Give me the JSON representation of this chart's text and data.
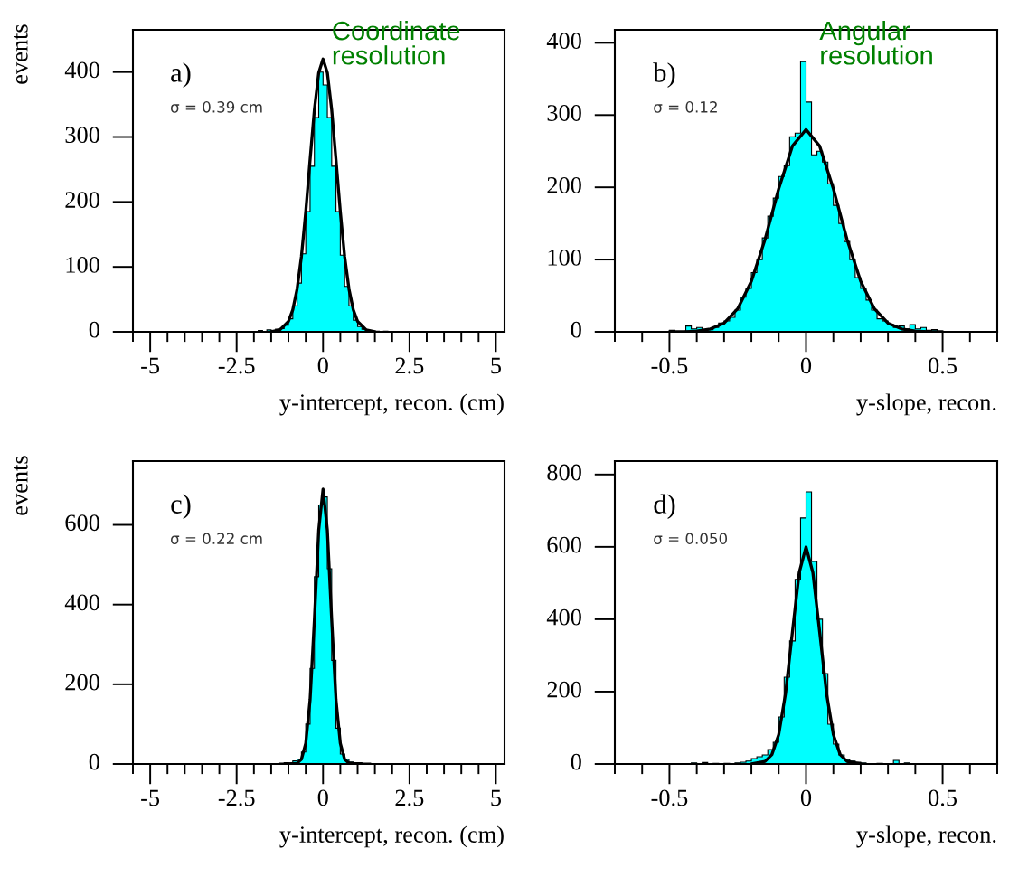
{
  "chart_data": [
    {
      "type": "histogram",
      "xlabel": "y-intercept, recon. (cm)",
      "ylabel": "events",
      "annotations": [
        "a)",
        "σ = 0.39 cm",
        "Coordinate\nresolution"
      ],
      "xlim": [
        -5.5,
        5.25
      ],
      "xticks": [
        -5,
        -2.5,
        0,
        2.5,
        5
      ],
      "ylim": [
        0,
        465
      ],
      "yticks": [
        0,
        100,
        200,
        300,
        400
      ],
      "series": [
        {
          "type": "histogram",
          "color": "#00ffff",
          "bins": [
            -2,
            -1.875,
            -1.75,
            -1.625,
            -1.5,
            -1.375,
            -1.25,
            -1.125,
            -1,
            -0.875,
            -0.75,
            -0.625,
            -0.5,
            -0.375,
            -0.25,
            -0.125,
            0,
            0.125,
            0.25,
            0.375,
            0.5,
            0.625,
            0.75,
            0.875,
            1,
            1.125,
            1.25,
            1.375,
            1.5,
            1.625,
            1.75,
            1.875,
            2
          ],
          "values": [
            0,
            2,
            0,
            3,
            2,
            4,
            5,
            10,
            20,
            40,
            75,
            120,
            185,
            255,
            330,
            400,
            380,
            330,
            255,
            185,
            118,
            70,
            40,
            18,
            8,
            4,
            2,
            1,
            1,
            0,
            1,
            0
          ]
        },
        {
          "type": "line",
          "color": "#000000",
          "x": [
            -1.5,
            -1.25,
            -1,
            -0.875,
            -0.75,
            -0.625,
            -0.5,
            -0.375,
            -0.25,
            -0.125,
            0,
            0.125,
            0.25,
            0.375,
            0.5,
            0.625,
            0.75,
            0.875,
            1,
            1.25,
            1.5
          ],
          "values": [
            0,
            3,
            16,
            34,
            66,
            116,
            185,
            265,
            342,
            399,
            420,
            399,
            342,
            265,
            185,
            116,
            66,
            34,
            16,
            3,
            0
          ]
        }
      ]
    },
    {
      "type": "histogram",
      "xlabel": "y-slope, recon.",
      "annotations": [
        "b)",
        "σ = 0.12",
        "Angular\nresolution"
      ],
      "xlim": [
        -0.7,
        0.7
      ],
      "xticks": [
        -0.5,
        0,
        0.5
      ],
      "ylim": [
        0,
        418
      ],
      "yticks": [
        0,
        100,
        200,
        300,
        400
      ],
      "series": [
        {
          "type": "histogram",
          "color": "#00ffff",
          "bins": [
            -0.5,
            -0.48,
            -0.46,
            -0.44,
            -0.42,
            -0.4,
            -0.38,
            -0.36,
            -0.34,
            -0.32,
            -0.3,
            -0.28,
            -0.26,
            -0.24,
            -0.22,
            -0.2,
            -0.18,
            -0.16,
            -0.14,
            -0.12,
            -0.1,
            -0.08,
            -0.06,
            -0.04,
            -0.02,
            0,
            0.02,
            0.04,
            0.06,
            0.08,
            0.1,
            0.12,
            0.14,
            0.16,
            0.18,
            0.2,
            0.22,
            0.24,
            0.26,
            0.28,
            0.3,
            0.32,
            0.34,
            0.36,
            0.38,
            0.4,
            0.42,
            0.44,
            0.46,
            0.48,
            0.5
          ],
          "values": [
            2,
            0,
            0,
            8,
            4,
            6,
            2,
            3,
            6,
            12,
            15,
            20,
            30,
            48,
            60,
            82,
            100,
            130,
            160,
            185,
            215,
            230,
            270,
            275,
            374,
            318,
            245,
            250,
            235,
            205,
            175,
            150,
            125,
            100,
            75,
            60,
            44,
            30,
            18,
            15,
            10,
            6,
            8,
            4,
            10,
            4,
            6,
            2,
            3,
            0
          ]
        },
        {
          "type": "line",
          "color": "#000000",
          "x": [
            -0.5,
            -0.45,
            -0.4,
            -0.35,
            -0.3,
            -0.25,
            -0.2,
            -0.15,
            -0.1,
            -0.05,
            0,
            0.05,
            0.1,
            0.15,
            0.2,
            0.25,
            0.3,
            0.35,
            0.4,
            0.45,
            0.5
          ],
          "values": [
            0,
            0,
            1,
            4,
            12,
            32,
            70,
            128,
            198,
            257,
            280,
            257,
            198,
            128,
            70,
            32,
            12,
            4,
            1,
            0,
            0
          ]
        }
      ]
    },
    {
      "type": "histogram",
      "xlabel": "y-intercept, recon. (cm)",
      "ylabel": "events",
      "annotations": [
        "c)",
        "σ = 0.22 cm"
      ],
      "xlim": [
        -5.5,
        5.25
      ],
      "xticks": [
        -5,
        -2.5,
        0,
        2.5,
        5
      ],
      "ylim": [
        0,
        760
      ],
      "yticks": [
        0,
        200,
        400,
        600
      ],
      "series": [
        {
          "type": "histogram",
          "color": "#00ffff",
          "bins": [
            -2,
            -1.875,
            -1.75,
            -1.625,
            -1.5,
            -1.375,
            -1.25,
            -1.125,
            -1,
            -0.875,
            -0.75,
            -0.625,
            -0.5,
            -0.375,
            -0.25,
            -0.125,
            0,
            0.125,
            0.25,
            0.375,
            0.5,
            0.625,
            0.75,
            0.875,
            1,
            1.125,
            1.25,
            1.375,
            1.5,
            1.625,
            1.75,
            1.875,
            2
          ],
          "values": [
            0,
            0,
            0,
            0,
            1,
            0,
            2,
            3,
            2,
            8,
            12,
            30,
            100,
            240,
            470,
            650,
            670,
            490,
            260,
            90,
            25,
            12,
            5,
            3,
            3,
            2,
            2,
            1,
            0,
            0,
            0,
            0
          ]
        },
        {
          "type": "line",
          "color": "#000000",
          "x": [
            -1,
            -0.75,
            -0.625,
            -0.5,
            -0.375,
            -0.25,
            -0.125,
            0,
            0.125,
            0.25,
            0.375,
            0.5,
            0.625,
            0.75,
            1
          ],
          "values": [
            0,
            2,
            12,
            52,
            161,
            362,
            587,
            690,
            587,
            362,
            161,
            52,
            12,
            2,
            0
          ]
        }
      ]
    },
    {
      "type": "histogram",
      "xlabel": "y-slope, recon.",
      "annotations": [
        "d)",
        "σ = 0.050"
      ],
      "xlim": [
        -0.7,
        0.7
      ],
      "xticks": [
        -0.5,
        0,
        0.5
      ],
      "ylim": [
        0,
        837
      ],
      "yticks": [
        0,
        200,
        400,
        600,
        800
      ],
      "series": [
        {
          "type": "histogram",
          "color": "#00ffff",
          "bins": [
            -0.5,
            -0.48,
            -0.46,
            -0.44,
            -0.42,
            -0.4,
            -0.38,
            -0.36,
            -0.34,
            -0.32,
            -0.3,
            -0.28,
            -0.26,
            -0.24,
            -0.22,
            -0.2,
            -0.18,
            -0.16,
            -0.14,
            -0.12,
            -0.1,
            -0.08,
            -0.06,
            -0.04,
            -0.02,
            0,
            0.02,
            0.04,
            0.06,
            0.08,
            0.1,
            0.12,
            0.14,
            0.16,
            0.18,
            0.2,
            0.22,
            0.24,
            0.26,
            0.28,
            0.3,
            0.32,
            0.34,
            0.36,
            0.38,
            0.4,
            0.42,
            0.44,
            0.46,
            0.48,
            0.5
          ],
          "values": [
            0,
            0,
            0,
            0,
            3,
            0,
            4,
            0,
            2,
            0,
            2,
            0,
            3,
            5,
            8,
            15,
            20,
            25,
            40,
            60,
            130,
            240,
            340,
            510,
            680,
            752,
            560,
            400,
            250,
            110,
            55,
            25,
            12,
            8,
            5,
            3,
            0,
            0,
            2,
            0,
            0,
            10,
            0,
            3,
            0,
            0,
            0,
            0,
            0,
            0
          ]
        },
        {
          "type": "line",
          "color": "#000000",
          "x": [
            -0.2,
            -0.15,
            -0.125,
            -0.1,
            -0.075,
            -0.05,
            -0.025,
            0,
            0.025,
            0.05,
            0.075,
            0.1,
            0.125,
            0.15,
            0.2
          ],
          "values": [
            0,
            7,
            26,
            81,
            195,
            364,
            529,
            600,
            529,
            364,
            195,
            81,
            26,
            7,
            0
          ]
        }
      ]
    }
  ]
}
